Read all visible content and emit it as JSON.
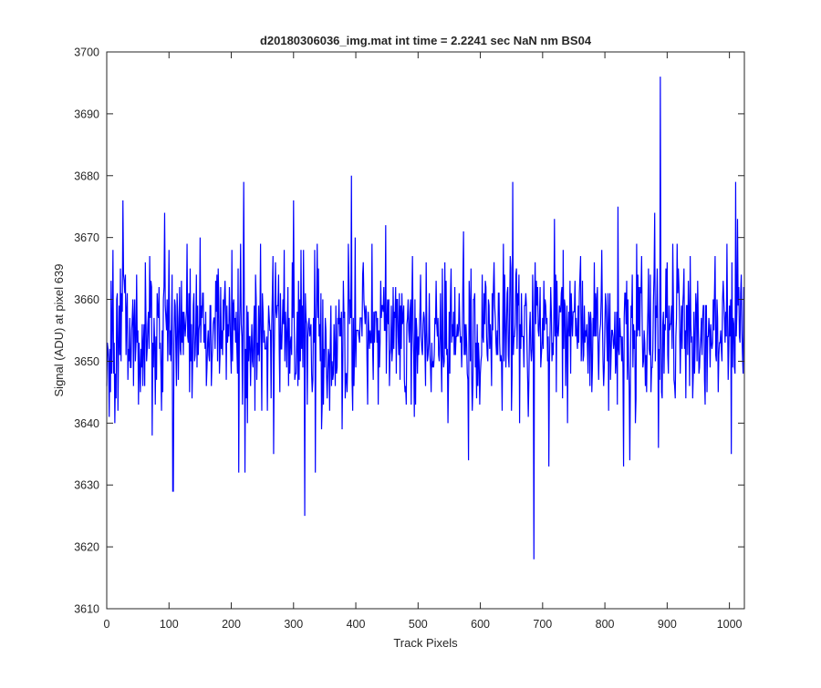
{
  "chart_data": {
    "type": "line",
    "title": "d20180306036_img.mat int time = 2.2241 sec  NaN nm BS04",
    "xlabel": "Track Pixels",
    "ylabel": "Signal (ADU) at pixel 639",
    "xlim": [
      0,
      1024
    ],
    "ylim": [
      3610,
      3700
    ],
    "xticks": [
      0,
      100,
      200,
      300,
      400,
      500,
      600,
      700,
      800,
      900,
      1000
    ],
    "yticks": [
      3610,
      3620,
      3630,
      3640,
      3650,
      3660,
      3670,
      3680,
      3690,
      3700
    ],
    "grid": false,
    "legend": "none",
    "series_color": "#0000ff",
    "baseline": 3655,
    "noise_sigma": 6,
    "n_points": 1024,
    "seed": 639,
    "notable_points": [
      {
        "x": 0,
        "y": 3646
      },
      {
        "x": 13,
        "y": 3640
      },
      {
        "x": 26,
        "y": 3676
      },
      {
        "x": 73,
        "y": 3638
      },
      {
        "x": 93,
        "y": 3674
      },
      {
        "x": 106,
        "y": 3629
      },
      {
        "x": 107,
        "y": 3629
      },
      {
        "x": 212,
        "y": 3632
      },
      {
        "x": 220,
        "y": 3679
      },
      {
        "x": 222,
        "y": 3632
      },
      {
        "x": 268,
        "y": 3635
      },
      {
        "x": 300,
        "y": 3676
      },
      {
        "x": 318,
        "y": 3625
      },
      {
        "x": 335,
        "y": 3632
      },
      {
        "x": 393,
        "y": 3680
      },
      {
        "x": 581,
        "y": 3634
      },
      {
        "x": 652,
        "y": 3679
      },
      {
        "x": 686,
        "y": 3618
      },
      {
        "x": 710,
        "y": 3633
      },
      {
        "x": 830,
        "y": 3633
      },
      {
        "x": 840,
        "y": 3634
      },
      {
        "x": 880,
        "y": 3674
      },
      {
        "x": 886,
        "y": 3636
      },
      {
        "x": 889,
        "y": 3696
      },
      {
        "x": 1003,
        "y": 3635
      },
      {
        "x": 1010,
        "y": 3679
      },
      {
        "x": 1023,
        "y": 3662
      }
    ]
  }
}
